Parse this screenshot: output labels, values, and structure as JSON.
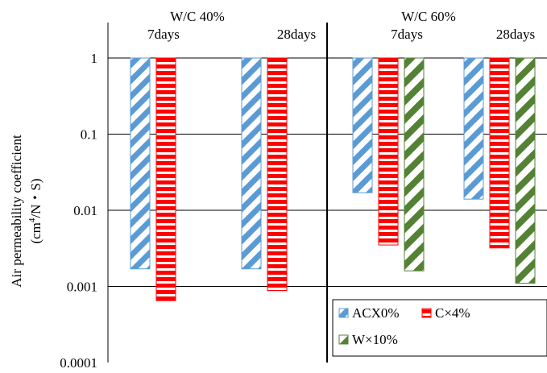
{
  "chart_data": {
    "type": "bar",
    "y_scale": "log",
    "ylim": [
      0.0001,
      1
    ],
    "bar_origin": 1,
    "ylabel_line1": "Air permeability coefficient",
    "ylabel_line2_prefix": "(cm",
    "ylabel_line2_sup": "4",
    "ylabel_line2_suffix": "/N・S)",
    "y_ticks": [
      {
        "value": 1,
        "label": "1"
      },
      {
        "value": 0.1,
        "label": "0.1"
      },
      {
        "value": 0.01,
        "label": "0.01"
      },
      {
        "value": 0.001,
        "label": "0.001"
      },
      {
        "value": 0.0001,
        "label": "0.0001"
      }
    ],
    "groups": [
      {
        "label": "W/C 40%",
        "subgroups": [
          {
            "label": "7days",
            "values": [
              0.0017,
              0.00065
            ]
          },
          {
            "label": "28days",
            "values": [
              0.0017,
              0.00088
            ]
          }
        ]
      },
      {
        "label": "W/C 60%",
        "subgroups": [
          {
            "label": "7days",
            "values": [
              0.017,
              0.0035,
              0.0016
            ]
          },
          {
            "label": "28days",
            "values": [
              0.014,
              0.0032,
              0.0011
            ]
          }
        ]
      }
    ],
    "series": [
      {
        "name": "ACX0%",
        "color": "#5b9bd5",
        "pattern": "diagonal"
      },
      {
        "name": "C×4%",
        "color": "#ff0000",
        "pattern": "horizontal"
      },
      {
        "name": "W×10%",
        "color": "#548235",
        "pattern": "diagonal-wide"
      }
    ],
    "legend_position": "bottom-right",
    "grid": true
  }
}
